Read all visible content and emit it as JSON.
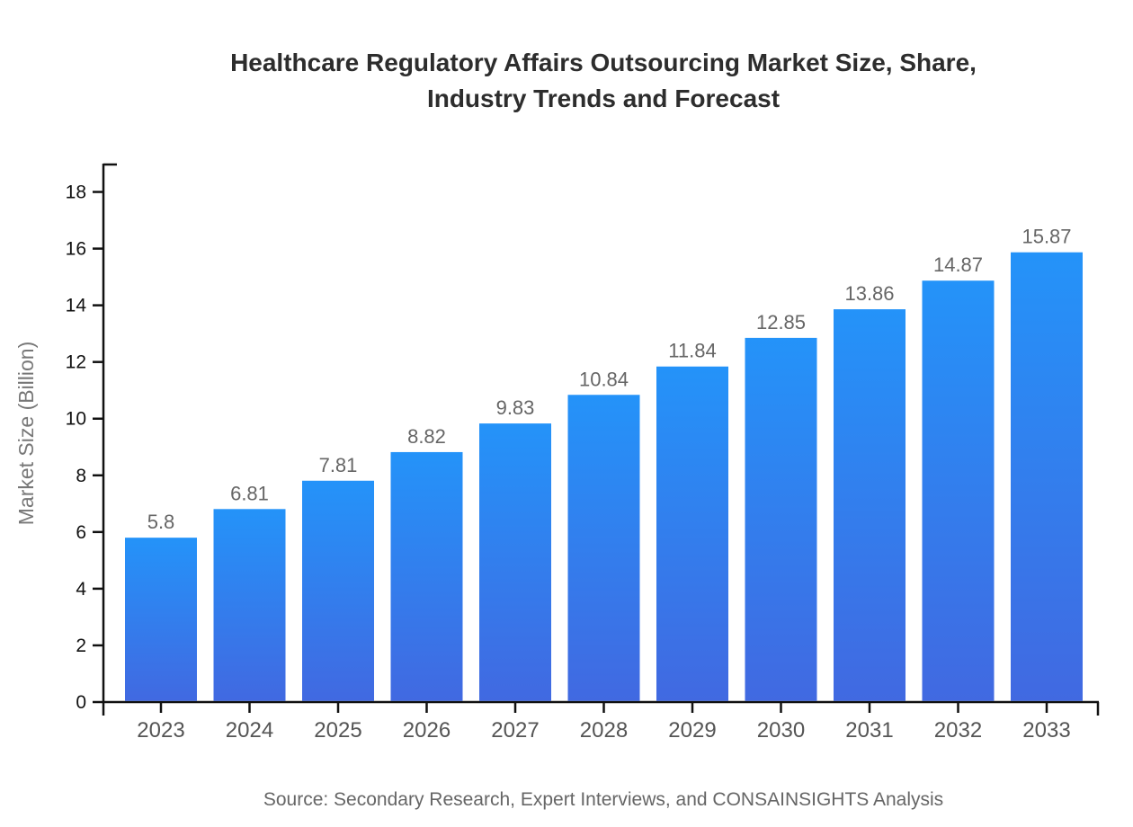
{
  "title_lines": [
    "Healthcare Regulatory Affairs Outsourcing Market Size, Share,",
    "Industry Trends and Forecast"
  ],
  "source_text": "Source: Secondary Research, Expert Interviews, and CONSAINSIGHTS Analysis",
  "chart_data": {
    "type": "bar",
    "title": "Healthcare Regulatory Affairs Outsourcing Market Size, Share, Industry Trends and Forecast",
    "categories": [
      "2023",
      "2024",
      "2025",
      "2026",
      "2027",
      "2028",
      "2029",
      "2030",
      "2031",
      "2032",
      "2033"
    ],
    "values": [
      5.8,
      6.81,
      7.81,
      8.82,
      9.83,
      10.84,
      11.84,
      12.85,
      13.86,
      14.87,
      15.87
    ],
    "value_labels": [
      "5.8",
      "6.81",
      "7.81",
      "8.82",
      "9.83",
      "10.84",
      "11.84",
      "12.85",
      "13.86",
      "14.87",
      "15.87"
    ],
    "xlabel": "",
    "ylabel": "Market Size (Billion)",
    "ylim": [
      0,
      19
    ],
    "yticks": [
      0,
      2,
      4,
      6,
      8,
      10,
      12,
      14,
      16,
      18
    ],
    "grid": false,
    "legend": false,
    "colors": {
      "bar_gradient_top": "#2493f9",
      "bar_gradient_bottom": "#4169e1",
      "axis": "#111111",
      "y_tick_label": "#111111",
      "category_label": "#555555",
      "value_label": "#666666",
      "ylabel_color": "#777777",
      "title_color": "#2d2d2d",
      "source_color": "#666666"
    }
  }
}
